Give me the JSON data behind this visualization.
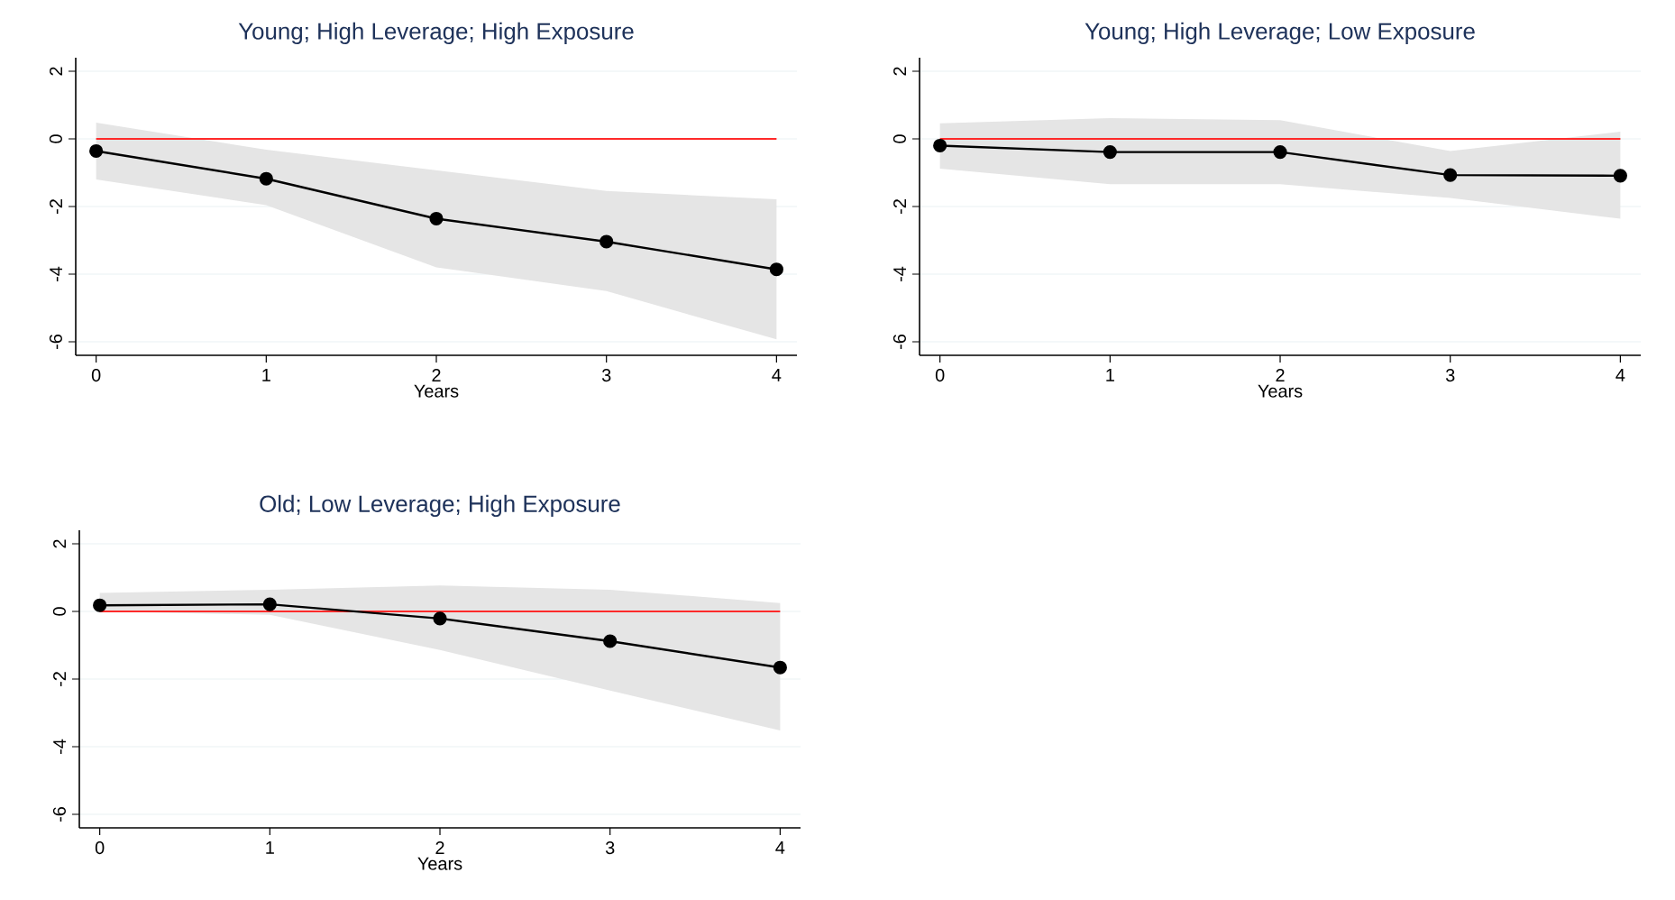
{
  "chart_data": [
    {
      "type": "line",
      "title": "Young; High Leverage; High Exposure",
      "xlabel": "Years",
      "x": [
        0,
        1,
        2,
        3,
        4
      ],
      "xlim": [
        -0.12,
        4.12
      ],
      "xticks": [
        0,
        1,
        2,
        3,
        4
      ],
      "ylim": [
        -6.4,
        2.4
      ],
      "yticks": [
        -6,
        -4,
        -2,
        0,
        2
      ],
      "grid": "y",
      "marker": "circle",
      "line_style": "solid",
      "series": [
        {
          "color": "#000000",
          "values": [
            -0.36,
            -1.18,
            -2.36,
            -3.04,
            -3.86
          ],
          "lower": [
            -1.2,
            -1.96,
            -3.8,
            -4.5,
            -5.93
          ],
          "upper": [
            0.48,
            -0.32,
            -0.93,
            -1.54,
            -1.79
          ]
        }
      ],
      "ref_lines": [
        {
          "axis": "y",
          "value": 0,
          "color": "#ff2a2a"
        }
      ]
    },
    {
      "type": "line",
      "title": "Young; High Leverage; Low Exposure",
      "xlabel": "Years",
      "x": [
        0,
        1,
        2,
        3,
        4
      ],
      "xlim": [
        -0.12,
        4.12
      ],
      "xticks": [
        0,
        1,
        2,
        3,
        4
      ],
      "ylim": [
        -6.4,
        2.4
      ],
      "yticks": [
        -6,
        -4,
        -2,
        0,
        2
      ],
      "grid": "y",
      "marker": "circle",
      "line_style": "solid",
      "series": [
        {
          "color": "#000000",
          "values": [
            -0.2,
            -0.39,
            -0.39,
            -1.07,
            -1.09
          ],
          "lower": [
            -0.88,
            -1.34,
            -1.34,
            -1.75,
            -2.36
          ],
          "upper": [
            0.46,
            0.61,
            0.55,
            -0.36,
            0.21
          ]
        }
      ],
      "ref_lines": [
        {
          "axis": "y",
          "value": 0,
          "color": "#ff2a2a"
        }
      ]
    },
    {
      "type": "line",
      "title": "Old; Low Leverage; High Exposure",
      "xlabel": "Years",
      "x": [
        0,
        1,
        2,
        3,
        4
      ],
      "xlim": [
        -0.12,
        4.12
      ],
      "xticks": [
        0,
        1,
        2,
        3,
        4
      ],
      "ylim": [
        -6.4,
        2.4
      ],
      "yticks": [
        -6,
        -4,
        -2,
        0,
        2
      ],
      "grid": "y",
      "marker": "circle",
      "line_style": "solid",
      "series": [
        {
          "color": "#000000",
          "values": [
            0.18,
            0.21,
            -0.21,
            -0.88,
            -1.66
          ],
          "lower": [
            0.0,
            -0.1,
            -1.14,
            -2.34,
            -3.52
          ],
          "upper": [
            0.55,
            0.64,
            0.77,
            0.64,
            0.25
          ]
        }
      ],
      "ref_lines": [
        {
          "axis": "y",
          "value": 0,
          "color": "#ff2a2a"
        }
      ]
    }
  ]
}
